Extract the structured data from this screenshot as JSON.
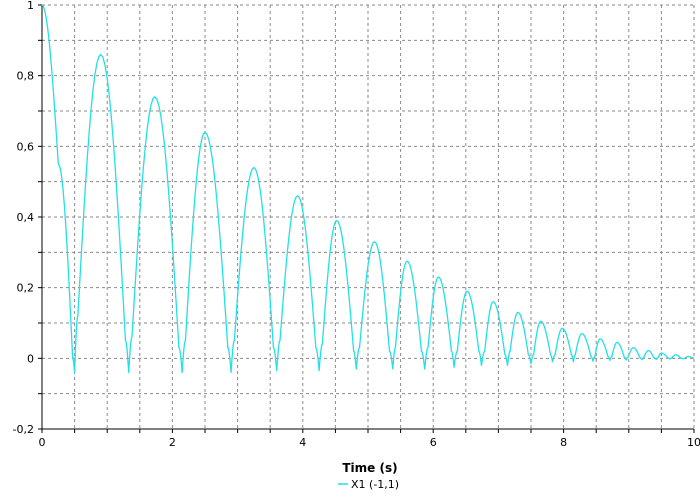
{
  "chart_data": {
    "type": "line",
    "title": "",
    "xlabel": "Time (s)",
    "ylabel": "",
    "xlim": [
      0,
      10
    ],
    "ylim": [
      -0.2,
      1
    ],
    "grid": true,
    "legend_placement": "bottom-center",
    "x_ticks": [
      0,
      2,
      4,
      6,
      8,
      10
    ],
    "x_tick_labels": [
      "0",
      "2",
      "4",
      "6",
      "8",
      "10"
    ],
    "y_ticks": [
      -0.2,
      0,
      0.2,
      0.4,
      0.6,
      0.8,
      1
    ],
    "y_tick_labels": [
      "-0,2",
      "0",
      "0,2",
      "0,4",
      "0,6",
      "0,8",
      "1"
    ],
    "series": [
      {
        "name": "X1 (-1,1)",
        "color": "#22e0e6",
        "x": [
          0,
          0.25,
          0.47,
          0.5,
          0.55,
          0.9,
          1.28,
          1.33,
          1.38,
          1.73,
          2.1,
          2.15,
          2.2,
          2.5,
          2.85,
          2.9,
          2.95,
          3.25,
          3.55,
          3.6,
          3.65,
          3.92,
          4.2,
          4.25,
          4.3,
          4.52,
          4.78,
          4.82,
          4.87,
          5.1,
          5.33,
          5.38,
          5.42,
          5.6,
          5.82,
          5.87,
          5.92,
          6.08,
          6.28,
          6.32,
          6.37,
          6.52,
          6.7,
          6.74,
          6.79,
          6.92,
          7.1,
          7.14,
          7.18,
          7.3,
          7.46,
          7.5,
          7.54,
          7.65,
          7.8,
          7.83,
          7.87,
          7.98,
          8.12,
          8.15,
          8.18,
          8.28,
          8.42,
          8.45,
          8.48,
          8.56,
          8.68,
          8.71,
          8.74,
          8.82,
          8.93,
          8.96,
          8.99,
          9.07,
          9.17,
          9.2,
          9.23,
          9.3,
          9.38,
          9.42,
          9.45,
          9.5,
          9.6,
          9.63,
          9.66,
          9.72,
          9.8,
          9.83,
          9.86,
          9.9,
          10
        ],
        "y": [
          1,
          0.55,
          0.0,
          -0.04,
          0.12,
          0.86,
          0.05,
          -0.04,
          0.06,
          0.74,
          0.03,
          -0.04,
          0.05,
          0.64,
          0.03,
          -0.04,
          0.05,
          0.54,
          0.03,
          -0.035,
          0.05,
          0.46,
          0.03,
          -0.035,
          0.04,
          0.39,
          0.02,
          -0.03,
          0.03,
          0.33,
          0.02,
          -0.03,
          0.03,
          0.275,
          0.02,
          -0.03,
          0.03,
          0.23,
          0.02,
          -0.025,
          0.02,
          0.19,
          0.02,
          -0.02,
          0.02,
          0.16,
          0.01,
          -0.02,
          0.02,
          0.13,
          0.01,
          -0.015,
          0.01,
          0.105,
          0.01,
          -0.01,
          0.01,
          0.085,
          0.01,
          -0.01,
          0.01,
          0.07,
          0.005,
          -0.008,
          0.005,
          0.055,
          0.005,
          -0.006,
          0.005,
          0.045,
          0.003,
          -0.005,
          0.003,
          0.03,
          0.002,
          -0.004,
          0.002,
          0.022,
          0.002,
          -0.003,
          0.002,
          0.015,
          0.001,
          -0.002,
          0.001,
          0.01,
          0.0,
          -0.001,
          0.0,
          0.005,
          0.0
        ]
      }
    ]
  }
}
